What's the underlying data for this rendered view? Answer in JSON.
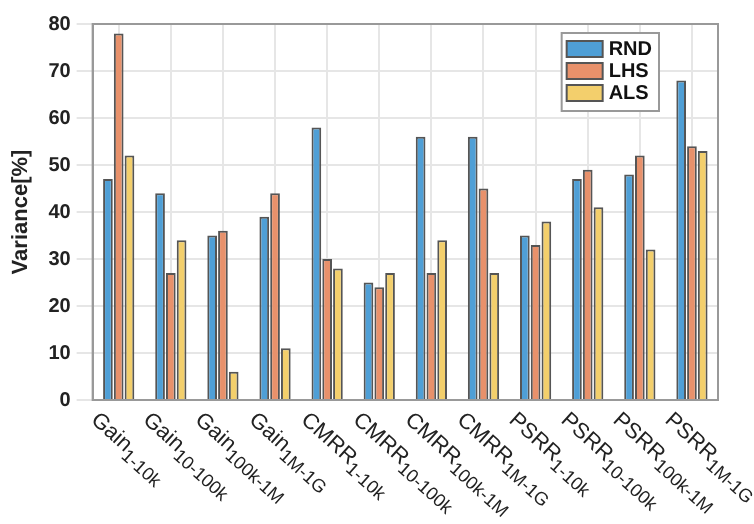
{
  "chart_data": {
    "type": "bar",
    "ylabel": "Variance[%]",
    "categories": [
      "Gain$_{1-10k}$",
      "Gain$_{10-100k}$",
      "Gain$_{100k-1M}$",
      "Gain$_{1M-1G}$",
      "CMRR$_{1-10k}$",
      "CMRR$_{10-100k}$",
      "CMRR$_{100k-1M}$",
      "CMRR$_{1M-1G}$",
      "PSRR$_{1-10k}$",
      "PSRR$_{10-100k}$",
      "PSRR$_{100k-1M}$",
      "PSRR$_{1M-1G}$"
    ],
    "series": [
      {
        "name": "RND",
        "color": "#4f9fd6",
        "values": [
          47,
          44,
          35,
          39,
          58,
          25,
          56,
          56,
          35,
          47,
          48,
          68
        ]
      },
      {
        "name": "LHS",
        "color": "#e8916b",
        "values": [
          78,
          27,
          36,
          44,
          30,
          24,
          27,
          45,
          33,
          49,
          52,
          54
        ]
      },
      {
        "name": "ALS",
        "color": "#f3cf6c",
        "values": [
          52,
          34,
          6,
          11,
          28,
          27,
          34,
          27,
          38,
          41,
          32,
          53
        ]
      }
    ],
    "ylim": [
      0,
      80
    ],
    "yticks": [
      0,
      10,
      20,
      30,
      40,
      50,
      60,
      70,
      80
    ],
    "grid": true,
    "legend": "top right"
  }
}
